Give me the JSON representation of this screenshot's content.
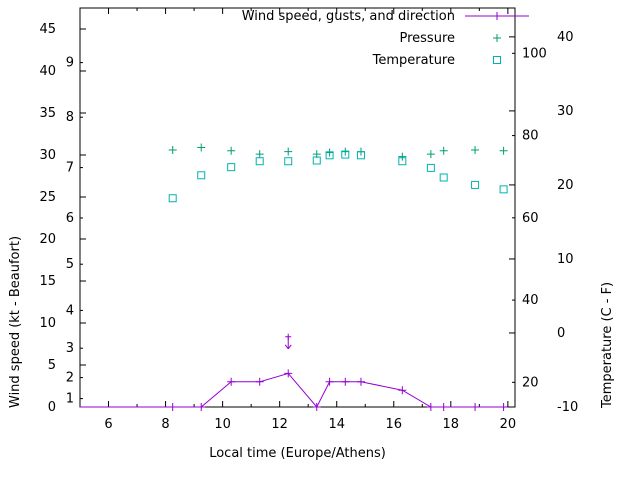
{
  "chart_data": {
    "type": "line",
    "xlabel": "Local time (Europe/Athens)",
    "ylabel_left": "Wind speed (kt - Beaufort)",
    "ylabel_right": "Temperature (C - F)",
    "x_unit": "hour",
    "x": [
      8.25,
      9.25,
      10.3,
      11.3,
      12.3,
      13.3,
      13.75,
      14.3,
      14.85,
      16.3,
      17.3,
      17.75,
      18.85,
      19.85
    ],
    "series": [
      {
        "name": "Wind speed, gusts, and direction",
        "marker": "plus",
        "line": true,
        "color": "#9400d3",
        "axis": "left",
        "unit": "kt",
        "extends_to_left_border": true,
        "values": [
          0,
          0,
          3,
          3,
          4,
          0,
          3,
          3,
          3,
          2,
          0,
          0,
          0,
          0
        ]
      },
      {
        "name": "Pressure",
        "marker": "plus",
        "line": false,
        "color": "#009e73",
        "axis": "left",
        "unit": "inHg",
        "values": [
          30.6,
          30.9,
          30.5,
          30.1,
          30.4,
          30.1,
          30.3,
          30.4,
          30.4,
          29.8,
          30.1,
          30.5,
          30.6,
          30.5
        ]
      },
      {
        "name": "Temperature",
        "marker": "square",
        "line": false,
        "color": "#00b2b2",
        "axis": "right",
        "unit": "C",
        "values": [
          18.2,
          21.3,
          22.4,
          23.2,
          23.2,
          23.3,
          24.0,
          24.1,
          24.0,
          23.2,
          22.3,
          21.0,
          20.0,
          19.4
        ]
      }
    ],
    "gust_marker": {
      "time": 12.3,
      "value_kt": 8,
      "symbol": "arrow-down"
    }
  },
  "axes": {
    "x": {
      "range": [
        5,
        20.25
      ],
      "ticks": [
        6,
        8,
        10,
        12,
        14,
        16,
        18,
        20
      ],
      "minor_ticks": [
        7,
        9,
        11,
        13,
        15,
        17,
        19
      ]
    },
    "y_left": {
      "range": [
        0,
        47.5
      ],
      "kt_ticks": [
        0,
        5,
        10,
        15,
        20,
        25,
        30,
        35,
        40,
        45
      ],
      "beaufort_labels": [
        {
          "b": "1",
          "kt": 1
        },
        {
          "b": "2",
          "kt": 3.5
        },
        {
          "b": "3",
          "kt": 7
        },
        {
          "b": "4",
          "kt": 11.5
        },
        {
          "b": "5",
          "kt": 17
        },
        {
          "b": "6",
          "kt": 22.5
        },
        {
          "b": "7",
          "kt": 28.5
        },
        {
          "b": "8",
          "kt": 34.5
        },
        {
          "b": "9",
          "kt": 41
        }
      ]
    },
    "y_right": {
      "range_c": [
        -10,
        43.9
      ],
      "c_ticks": [
        -10,
        0,
        10,
        20,
        30,
        40
      ],
      "f_ticks": [
        20,
        40,
        60,
        80,
        100
      ]
    }
  },
  "legend": {
    "items": [
      {
        "label": "Wind speed, gusts, and direction",
        "series": 0
      },
      {
        "label": "Pressure",
        "series": 1
      },
      {
        "label": "Temperature",
        "series": 2
      }
    ]
  }
}
